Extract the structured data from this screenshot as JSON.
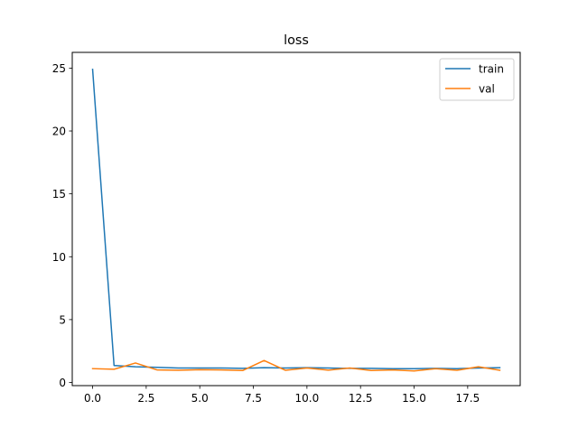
{
  "chart_data": {
    "type": "line",
    "title": "loss",
    "xlabel": "",
    "ylabel": "",
    "x": [
      0,
      1,
      2,
      3,
      4,
      5,
      6,
      7,
      8,
      9,
      10,
      11,
      12,
      13,
      14,
      15,
      16,
      17,
      18,
      19
    ],
    "xlim": [
      -0.95,
      19.95
    ],
    "ylim": [
      -0.25,
      26.25
    ],
    "xticks": [
      0.0,
      2.5,
      5.0,
      7.5,
      10.0,
      12.5,
      15.0,
      17.5
    ],
    "xtick_labels": [
      "0.0",
      "2.5",
      "5.0",
      "7.5",
      "10.0",
      "12.5",
      "15.0",
      "17.5"
    ],
    "yticks": [
      0,
      5,
      10,
      15,
      20,
      25
    ],
    "ytick_labels": [
      "0",
      "5",
      "10",
      "15",
      "20",
      "25"
    ],
    "grid": false,
    "legend_position": "top-right",
    "series": [
      {
        "name": "train",
        "color": "#1f77b4",
        "values": [
          24.9,
          1.35,
          1.25,
          1.2,
          1.15,
          1.15,
          1.15,
          1.12,
          1.18,
          1.15,
          1.18,
          1.15,
          1.12,
          1.12,
          1.1,
          1.1,
          1.12,
          1.1,
          1.15,
          1.18
        ]
      },
      {
        "name": "val",
        "color": "#ff7f0e",
        "values": [
          1.1,
          1.05,
          1.55,
          1.0,
          0.97,
          1.02,
          1.0,
          0.95,
          1.75,
          0.97,
          1.15,
          0.98,
          1.15,
          0.95,
          1.0,
          0.92,
          1.1,
          0.97,
          1.25,
          0.97
        ]
      }
    ]
  }
}
